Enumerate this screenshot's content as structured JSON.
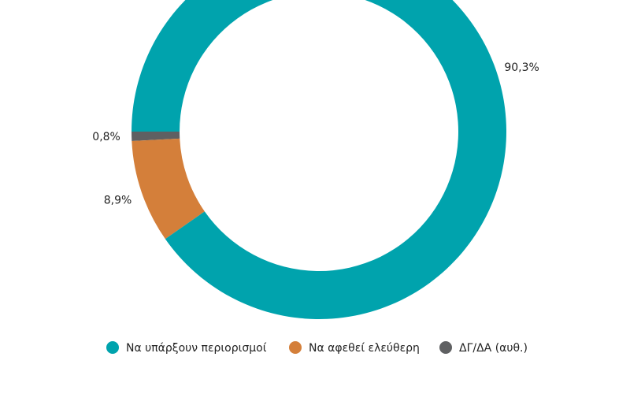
{
  "chart_data": {
    "type": "donut",
    "categories": [
      "Να υπάρξουν περιορισμοί",
      "Να αφεθεί ελεύθερη",
      "ΔΓ/ΔΑ (αυθ.)"
    ],
    "values": [
      90.3,
      8.9,
      0.8
    ],
    "value_labels": [
      "90,3%",
      "8,9%",
      "0,8%"
    ],
    "colors": [
      "#00a3ad",
      "#d47f3a",
      "#5f6062"
    ],
    "legend": "bottom"
  }
}
